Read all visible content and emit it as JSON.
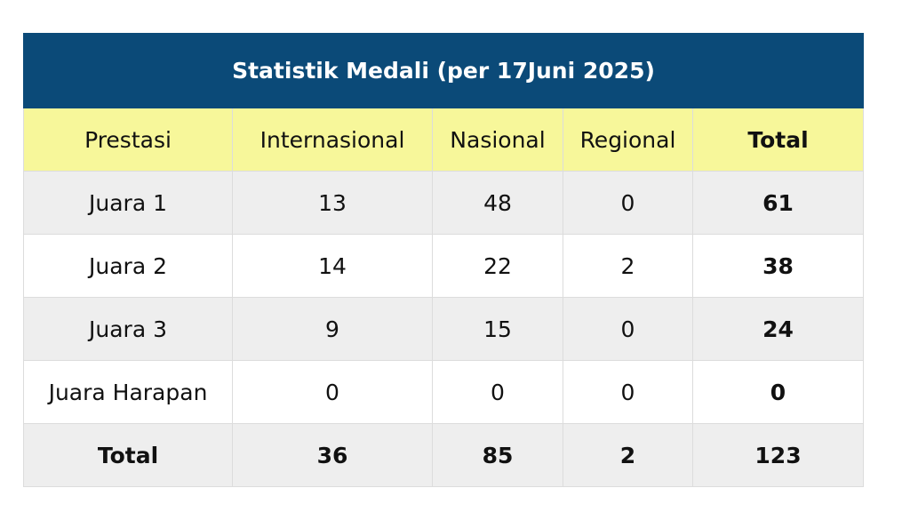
{
  "title": "Statistik Medali (per 17Juni 2025)",
  "headers": [
    "Prestasi",
    "Internasional",
    "Nasional",
    "Regional",
    "Total"
  ],
  "rows": [
    {
      "label": "Juara 1",
      "internasional": "13",
      "nasional": "48",
      "regional": "0",
      "total": "61"
    },
    {
      "label": "Juara 2",
      "internasional": "14",
      "nasional": "22",
      "regional": "2",
      "total": "38"
    },
    {
      "label": "Juara 3",
      "internasional": "9",
      "nasional": "15",
      "regional": "0",
      "total": "24"
    },
    {
      "label": "Juara Harapan",
      "internasional": "0",
      "nasional": "0",
      "regional": "0",
      "total": "0"
    }
  ],
  "totals": {
    "label": "Total",
    "internasional": "36",
    "nasional": "85",
    "regional": "2",
    "total": "123"
  },
  "colors": {
    "title_bg": "#0b4a78",
    "header_bg": "#f7f79a",
    "row_shade": "#eeeeee"
  }
}
